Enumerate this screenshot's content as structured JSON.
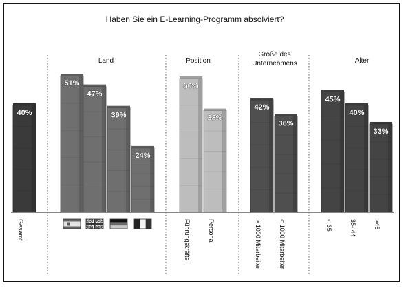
{
  "chart_data": {
    "type": "bar",
    "title": "Haben Sie ein E-Learning-Programm absolviert?",
    "unit": "%",
    "ylim": [
      0,
      60
    ],
    "grid": false,
    "groups": [
      {
        "label": "",
        "categories": [
          "Gesamt"
        ],
        "values": [
          40
        ],
        "value_labels": [
          "40%"
        ],
        "color": "#3a3a3a"
      },
      {
        "label": "Land",
        "categories": [
          "flag-spain-icon",
          "flag-uk-icon",
          "flag-germany-icon",
          "flag-france-icon"
        ],
        "values": [
          51,
          47,
          39,
          24
        ],
        "value_labels": [
          "51%",
          "47%",
          "39%",
          "24%"
        ],
        "color": "#6f6f6f"
      },
      {
        "label": "Position",
        "categories": [
          "Führungskräfte",
          "Personal"
        ],
        "values": [
          50,
          38
        ],
        "value_labels": [
          "50%",
          "38%"
        ],
        "color": "#bdbdbd"
      },
      {
        "label": "Größe des Unternehmens",
        "categories": [
          "> 1000 Mitarbeiter",
          "< 1000 Mitarbeiter"
        ],
        "values": [
          42,
          36
        ],
        "value_labels": [
          "42%",
          "36%"
        ],
        "color": "#4f4f4f"
      },
      {
        "label": "Alter",
        "categories": [
          "< 35",
          "35- 44",
          ">45"
        ],
        "values": [
          45,
          40,
          33
        ],
        "value_labels": [
          "45%",
          "40%",
          "33%"
        ],
        "color": "#444444"
      }
    ]
  }
}
